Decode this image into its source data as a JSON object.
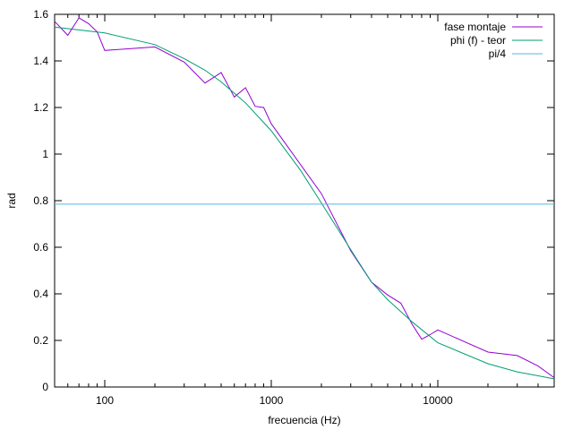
{
  "chart_data": {
    "type": "line",
    "xlabel": "frecuencia (Hz)",
    "ylabel": "rad",
    "xscale": "log",
    "xlim": [
      50,
      50000
    ],
    "ylim": [
      0,
      1.6
    ],
    "grid": false,
    "legend_position": "top-right",
    "x_ticks": [
      {
        "value": 100,
        "label": "100"
      },
      {
        "value": 1000,
        "label": "1000"
      },
      {
        "value": 10000,
        "label": "10000"
      }
    ],
    "y_ticks": [
      {
        "value": 0,
        "label": "0"
      },
      {
        "value": 0.2,
        "label": "0.2"
      },
      {
        "value": 0.4,
        "label": "0.4"
      },
      {
        "value": 0.6,
        "label": "0.6"
      },
      {
        "value": 0.8,
        "label": "0.8"
      },
      {
        "value": 1.0,
        "label": "1"
      },
      {
        "value": 1.2,
        "label": "1.2"
      },
      {
        "value": 1.4,
        "label": "1.4"
      },
      {
        "value": 1.6,
        "label": "1.6"
      }
    ],
    "series": [
      {
        "name": "fase montaje",
        "color": "#9400d3",
        "x": [
          50,
          60,
          70,
          80,
          90,
          100,
          200,
          300,
          400,
          500,
          600,
          700,
          800,
          900,
          1000,
          2000,
          3000,
          4000,
          5000,
          6000,
          7000,
          8000,
          9000,
          10000,
          20000,
          30000,
          40000,
          50000
        ],
        "y": [
          1.57,
          1.51,
          1.585,
          1.56,
          1.525,
          1.445,
          1.46,
          1.395,
          1.305,
          1.35,
          1.245,
          1.285,
          1.205,
          1.2,
          1.13,
          0.83,
          0.585,
          0.45,
          0.395,
          0.36,
          0.27,
          0.205,
          0.225,
          0.245,
          0.15,
          0.135,
          0.09,
          0.04
        ]
      },
      {
        "name": "phi (f) - teor",
        "color": "#009e73",
        "x": [
          50,
          100,
          200,
          300,
          400,
          500,
          700,
          1000,
          1500,
          2000,
          3000,
          4000,
          5000,
          7000,
          10000,
          20000,
          30000,
          50000
        ],
        "y": [
          1.545,
          1.52,
          1.47,
          1.41,
          1.36,
          1.31,
          1.22,
          1.1,
          0.93,
          0.79,
          0.59,
          0.45,
          0.375,
          0.28,
          0.19,
          0.1,
          0.065,
          0.035
        ]
      },
      {
        "name": "pi/4",
        "color": "#56b4e9",
        "x": [
          50,
          50000
        ],
        "y": [
          0.785,
          0.785
        ]
      }
    ]
  }
}
